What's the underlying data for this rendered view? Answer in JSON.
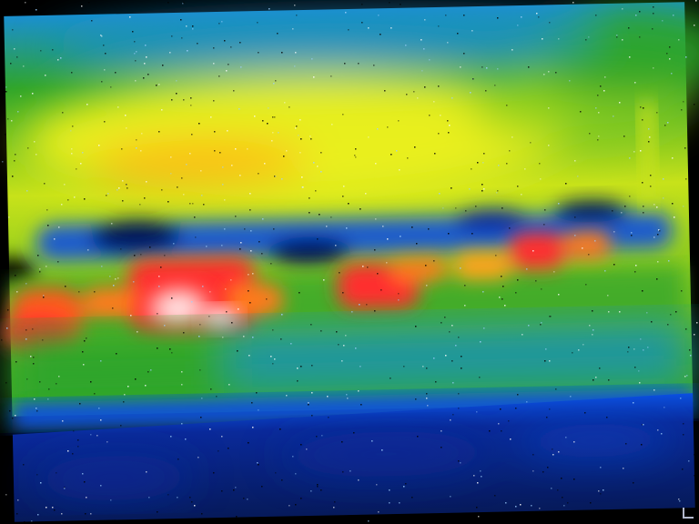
{
  "image": {
    "palette": {
      "background_black": "#000000",
      "cold_navy": "#0a1b6a",
      "cold_blue": "#0a50e0",
      "cool_cyan": "#1a8fd0",
      "mid_green": "#2fa52a",
      "warm_yellow": "#e7ef1a",
      "hot_orange": "#ff7a1a",
      "hot_red": "#ff2e2e",
      "hottest_white": "#ffffff"
    },
    "icons": [
      "thermal-scene",
      "corner-marker-icon"
    ]
  }
}
